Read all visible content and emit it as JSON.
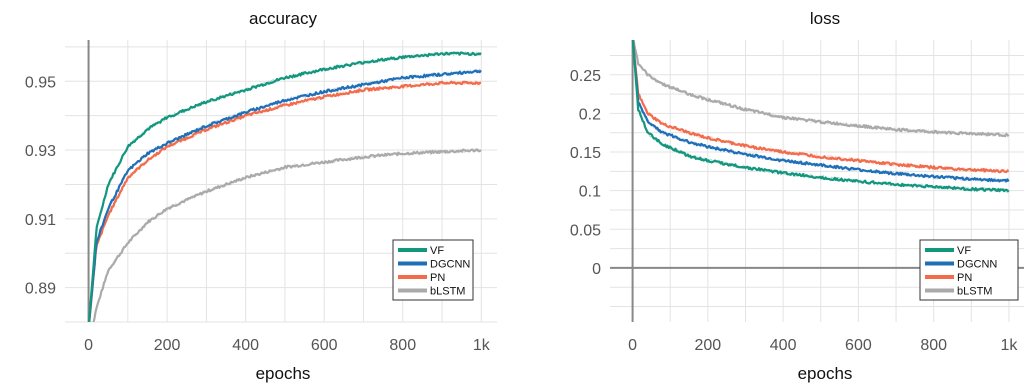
{
  "chart_data": [
    {
      "type": "line",
      "title": "accuracy",
      "xlabel": "epochs",
      "ylabel": "",
      "xlim": [
        -60,
        1040
      ],
      "ylim": [
        0.88,
        0.962
      ],
      "x_ticks": [
        0,
        200,
        400,
        600,
        800,
        1000
      ],
      "x_tick_labels": [
        "0",
        "200",
        "400",
        "600",
        "800",
        "1k"
      ],
      "y_ticks": [
        0.89,
        0.91,
        0.93,
        0.95
      ],
      "y_tick_labels": [
        "0.89",
        "0.91",
        "0.93",
        "0.95"
      ],
      "grid": true,
      "legend_position": "bottom-right",
      "x": [
        0,
        20,
        50,
        100,
        150,
        200,
        300,
        400,
        500,
        600,
        700,
        800,
        900,
        1000
      ],
      "series": [
        {
          "name": "VF",
          "color": "#12967e",
          "values": [
            0.878,
            0.907,
            0.92,
            0.931,
            0.936,
            0.9395,
            0.944,
            0.9475,
            0.951,
            0.9535,
            0.9555,
            0.957,
            0.958,
            0.958
          ]
        },
        {
          "name": "DGCNN",
          "color": "#1f6fb8",
          "values": [
            0.878,
            0.903,
            0.913,
            0.924,
            0.929,
            0.932,
            0.937,
            0.941,
            0.9445,
            0.947,
            0.949,
            0.951,
            0.952,
            0.953
          ]
        },
        {
          "name": "PN",
          "color": "#f26b4b",
          "values": [
            0.878,
            0.902,
            0.911,
            0.922,
            0.927,
            0.931,
            0.936,
            0.94,
            0.943,
            0.9455,
            0.9475,
            0.9485,
            0.9495,
            0.9495
          ]
        },
        {
          "name": "bLSTM",
          "color": "#aaaaaa",
          "values": [
            0.873,
            0.884,
            0.895,
            0.903,
            0.909,
            0.913,
            0.918,
            0.922,
            0.925,
            0.9265,
            0.928,
            0.929,
            0.9295,
            0.93
          ]
        }
      ]
    },
    {
      "type": "line",
      "title": "loss",
      "xlabel": "epochs",
      "ylabel": "",
      "xlim": [
        -60,
        1040
      ],
      "ylim": [
        -0.07,
        0.295
      ],
      "x_ticks": [
        0,
        200,
        400,
        600,
        800,
        1000
      ],
      "x_tick_labels": [
        "0",
        "200",
        "400",
        "600",
        "800",
        "1k"
      ],
      "y_ticks": [
        0,
        0.05,
        0.1,
        0.15,
        0.2,
        0.25
      ],
      "y_tick_labels": [
        "0",
        "0.05",
        "0.1",
        "0.15",
        "0.2",
        "0.25"
      ],
      "grid": true,
      "legend_position": "bottom-right",
      "x": [
        0,
        15,
        40,
        80,
        150,
        200,
        300,
        400,
        500,
        600,
        700,
        800,
        900,
        1000
      ],
      "series": [
        {
          "name": "VF",
          "color": "#12967e",
          "values": [
            0.3,
            0.205,
            0.175,
            0.16,
            0.145,
            0.139,
            0.13,
            0.123,
            0.117,
            0.112,
            0.108,
            0.105,
            0.102,
            0.1
          ]
        },
        {
          "name": "DGCNN",
          "color": "#1f6fb8",
          "values": [
            0.3,
            0.215,
            0.19,
            0.175,
            0.163,
            0.157,
            0.147,
            0.139,
            0.133,
            0.127,
            0.122,
            0.118,
            0.115,
            0.113
          ]
        },
        {
          "name": "PN",
          "color": "#f26b4b",
          "values": [
            0.3,
            0.225,
            0.2,
            0.186,
            0.175,
            0.168,
            0.158,
            0.15,
            0.144,
            0.139,
            0.134,
            0.13,
            0.127,
            0.125
          ]
        },
        {
          "name": "bLSTM",
          "color": "#aaaaaa",
          "values": [
            0.3,
            0.265,
            0.25,
            0.238,
            0.225,
            0.218,
            0.205,
            0.195,
            0.189,
            0.184,
            0.179,
            0.176,
            0.174,
            0.172
          ]
        }
      ]
    }
  ]
}
